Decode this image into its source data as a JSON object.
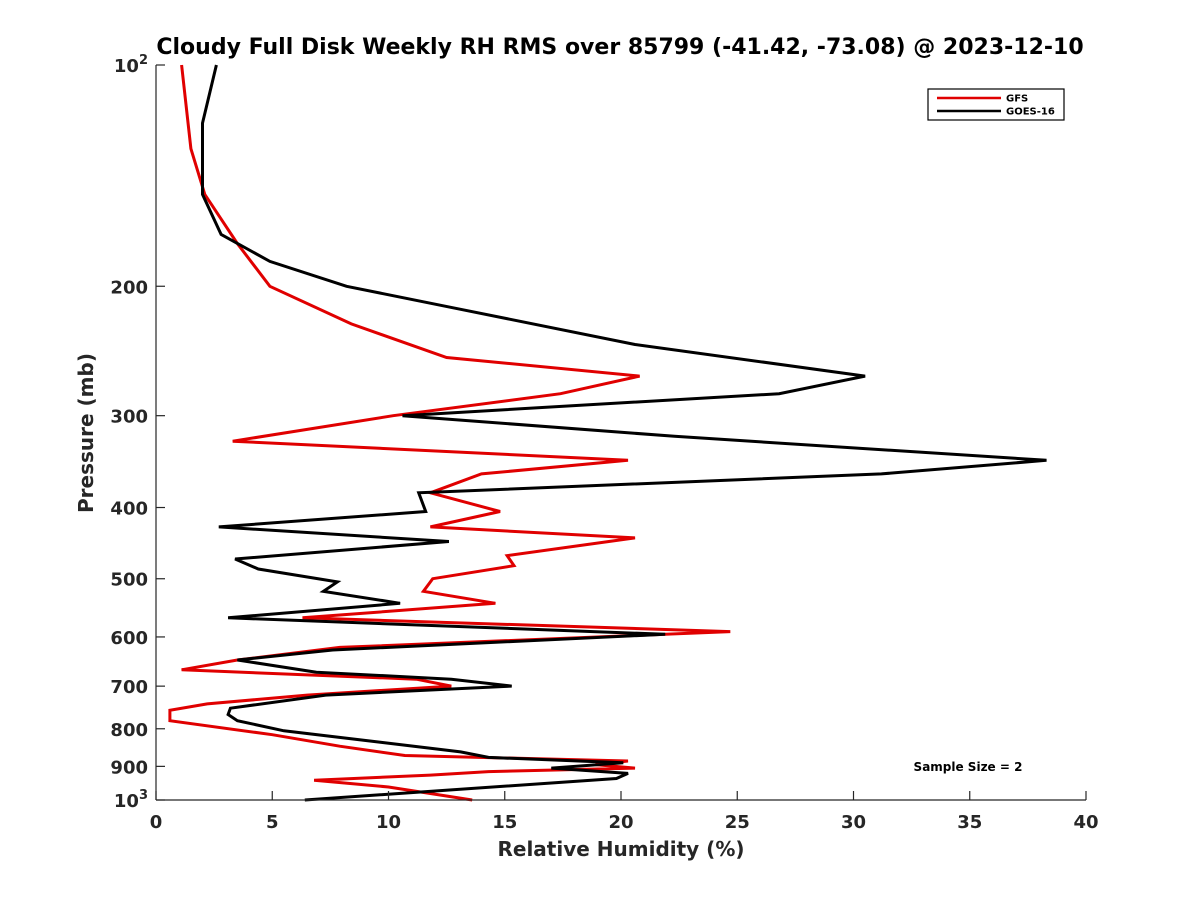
{
  "chart_data": {
    "type": "line",
    "title": "Cloudy Full Disk Weekly RH RMS over 85799 (-41.42, -73.08) @ 2023-12-10",
    "xlabel": "Relative Humidity (%)",
    "ylabel": "Pressure (mb)",
    "xlim": [
      0,
      40
    ],
    "ylim": [
      100,
      1000
    ],
    "yscale": "log",
    "y_reversed": true,
    "grid": false,
    "legend_position": "top-right",
    "x_ticks": [
      "0",
      "5",
      "10",
      "15",
      "20",
      "25",
      "30",
      "35",
      "40"
    ],
    "y_ticks": [
      {
        "value": 100,
        "base": "10",
        "exp": "2"
      },
      {
        "value": 200,
        "label": "200"
      },
      {
        "value": 300,
        "label": "300"
      },
      {
        "value": 400,
        "label": "400"
      },
      {
        "value": 500,
        "label": "500"
      },
      {
        "value": 600,
        "label": "600"
      },
      {
        "value": 700,
        "label": "700"
      },
      {
        "value": 800,
        "label": "800"
      },
      {
        "value": 900,
        "label": "900"
      },
      {
        "value": 1000,
        "base": "10",
        "exp": "3"
      }
    ],
    "annotation": "Sample Size = 2",
    "series": [
      {
        "name": "GFS",
        "color": "#e00000",
        "points": [
          [
            1.1,
            100
          ],
          [
            1.5,
            130
          ],
          [
            2.1,
            150
          ],
          [
            3.5,
            175
          ],
          [
            4.9,
            200
          ],
          [
            8.4,
            225
          ],
          [
            12.5,
            250
          ],
          [
            20.8,
            265
          ],
          [
            17.4,
            280
          ],
          [
            10.2,
            300
          ],
          [
            3.3,
            325
          ],
          [
            20.3,
            345
          ],
          [
            14.0,
            360
          ],
          [
            11.8,
            382
          ],
          [
            14.8,
            405
          ],
          [
            11.8,
            425
          ],
          [
            20.6,
            440
          ],
          [
            15.1,
            465
          ],
          [
            15.4,
            480
          ],
          [
            11.9,
            500
          ],
          [
            11.5,
            520
          ],
          [
            14.6,
            540
          ],
          [
            6.3,
            565
          ],
          [
            24.7,
            590
          ],
          [
            7.9,
            620
          ],
          [
            3.5,
            645
          ],
          [
            1.1,
            665
          ],
          [
            11.2,
            685
          ],
          [
            12.7,
            700
          ],
          [
            6.5,
            720
          ],
          [
            2.2,
            740
          ],
          [
            0.6,
            755
          ],
          [
            0.6,
            780
          ],
          [
            5.0,
            815
          ],
          [
            7.9,
            845
          ],
          [
            10.7,
            870
          ],
          [
            20.3,
            885
          ],
          [
            18.9,
            895
          ],
          [
            20.6,
            905
          ],
          [
            14.3,
            915
          ],
          [
            11.8,
            925
          ],
          [
            6.8,
            940
          ],
          [
            10.0,
            960
          ],
          [
            13.6,
            1000
          ]
        ]
      },
      {
        "name": "GOES-16",
        "color": "#000000",
        "points": [
          [
            2.6,
            100
          ],
          [
            2.0,
            120
          ],
          [
            2.0,
            150
          ],
          [
            2.8,
            170
          ],
          [
            4.9,
            185
          ],
          [
            8.2,
            200
          ],
          [
            13.1,
            215
          ],
          [
            20.6,
            240
          ],
          [
            30.5,
            265
          ],
          [
            26.8,
            280
          ],
          [
            10.6,
            300
          ],
          [
            22.3,
            320
          ],
          [
            38.3,
            345
          ],
          [
            31.2,
            360
          ],
          [
            11.3,
            382
          ],
          [
            11.6,
            405
          ],
          [
            2.7,
            425
          ],
          [
            12.6,
            445
          ],
          [
            3.4,
            470
          ],
          [
            4.4,
            485
          ],
          [
            7.8,
            505
          ],
          [
            7.2,
            520
          ],
          [
            10.5,
            540
          ],
          [
            3.1,
            565
          ],
          [
            21.9,
            595
          ],
          [
            7.6,
            625
          ],
          [
            3.5,
            645
          ],
          [
            6.9,
            670
          ],
          [
            12.7,
            685
          ],
          [
            15.3,
            700
          ],
          [
            7.3,
            720
          ],
          [
            3.2,
            750
          ],
          [
            3.1,
            765
          ],
          [
            3.5,
            780
          ],
          [
            5.5,
            805
          ],
          [
            9.7,
            835
          ],
          [
            13.1,
            860
          ],
          [
            14.3,
            875
          ],
          [
            20.1,
            890
          ],
          [
            17.0,
            905
          ],
          [
            20.3,
            920
          ],
          [
            19.8,
            935
          ],
          [
            6.4,
            1000
          ]
        ]
      }
    ]
  }
}
